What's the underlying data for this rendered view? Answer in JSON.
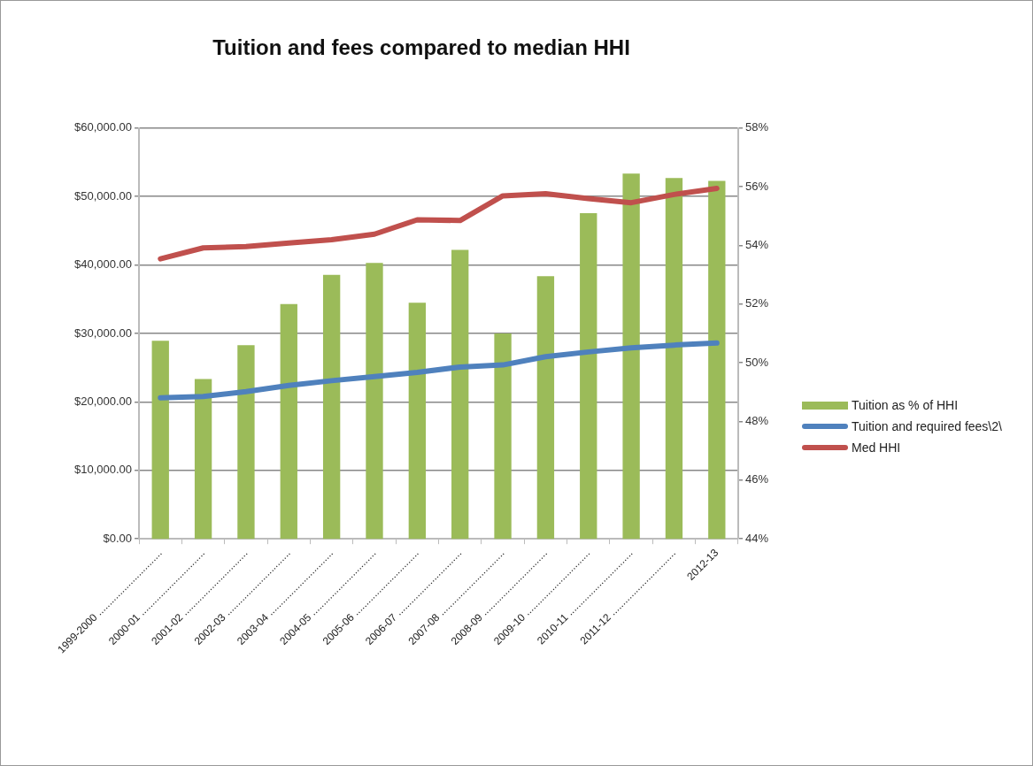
{
  "chart_data": {
    "type": "bar",
    "title": "Tuition and fees compared to median HHI",
    "categories": [
      "1999-2000 ..............................",
      "2000-01 ..............................",
      "2001-02 ..............................",
      "2002-03 ..............................",
      "2003-04 ..............................",
      "2004-05 ..............................",
      "2005-06 ..............................",
      "2006-07 ..............................",
      "2007-08 ..............................",
      "2008-09 ..............................",
      "2009-10 ..............................",
      "2010-11 ..............................",
      "2011-12 ..............................",
      "2012-13"
    ],
    "series": [
      {
        "name": "Tuition as % of HHI",
        "axis": "y2",
        "color": "#9bbb59",
        "values": [
          50.75,
          49.45,
          50.6,
          52.0,
          53.0,
          53.4,
          52.05,
          53.85,
          51.0,
          52.95,
          55.1,
          56.45,
          56.3,
          56.2
        ]
      },
      {
        "name": "Tuition and required fees\\2\\",
        "type": "line",
        "color": "#4f81bd",
        "values": [
          20600,
          20800,
          21500,
          22400,
          23100,
          23700,
          24300,
          25100,
          25400,
          26600,
          27300,
          27900,
          28300,
          28600
        ]
      },
      {
        "name": "Med HHI",
        "type": "line",
        "color": "#c0504d",
        "values": [
          40900,
          42500,
          42700,
          43200,
          43700,
          44500,
          46600,
          46500,
          50100,
          50400,
          49700,
          49100,
          50300,
          51200
        ]
      }
    ],
    "ylim": [
      0,
      60000
    ],
    "yticks": [
      {
        "value": 0,
        "label": "$0.00"
      },
      {
        "value": 10000,
        "label": "$10,000.00"
      },
      {
        "value": 20000,
        "label": "$20,000.00"
      },
      {
        "value": 30000,
        "label": "$30,000.00"
      },
      {
        "value": 40000,
        "label": "$40,000.00"
      },
      {
        "value": 50000,
        "label": "$50,000.00"
      },
      {
        "value": 60000,
        "label": "$60,000.00"
      }
    ],
    "y2lim": [
      44,
      58
    ],
    "y2ticks": [
      {
        "value": 44,
        "label": "44%"
      },
      {
        "value": 46,
        "label": "46%"
      },
      {
        "value": 48,
        "label": "48%"
      },
      {
        "value": 50,
        "label": "50%"
      },
      {
        "value": 52,
        "label": "52%"
      },
      {
        "value": 54,
        "label": "54%"
      },
      {
        "value": 56,
        "label": "56%"
      },
      {
        "value": 58,
        "label": "58%"
      }
    ],
    "grid": "y",
    "legend": "right",
    "marker": "none"
  }
}
